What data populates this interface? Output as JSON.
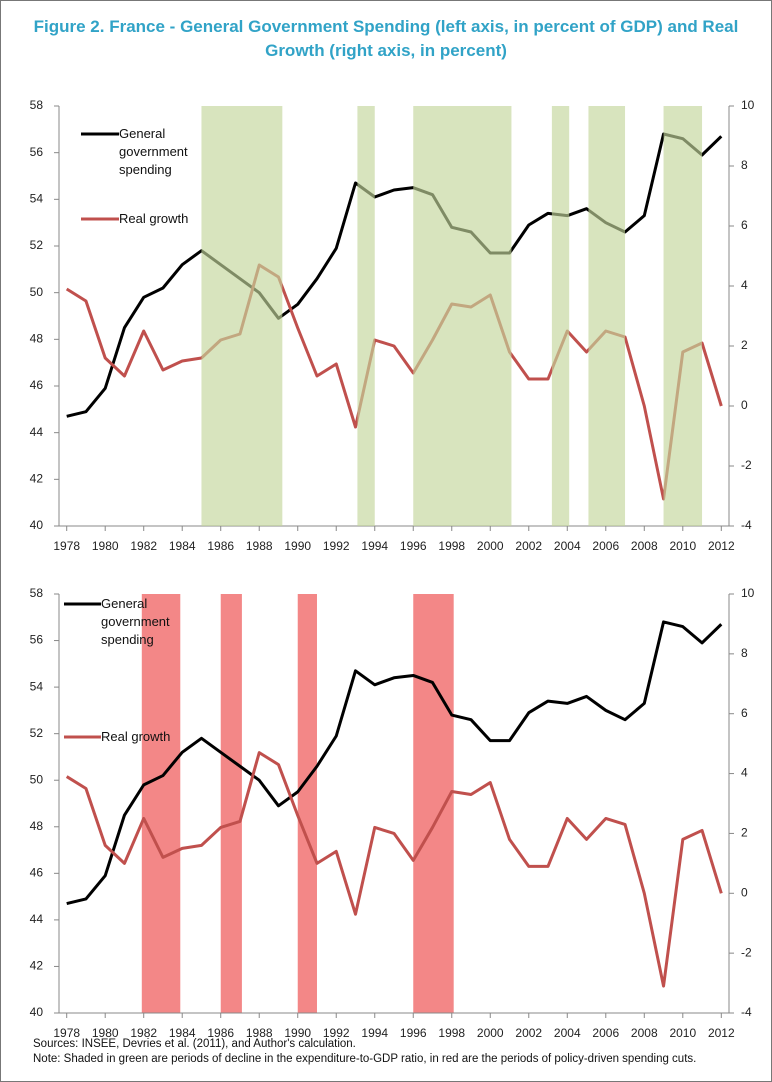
{
  "title": "Figure 2. France - General Government Spending (left axis, in percent of GDP) and Real Growth (right axis, in percent)",
  "notes": {
    "sources": "Sources: INSEE, Devries et al. (2011), and Author's calculation.",
    "note": "Note:  Shaded in green are periods of decline in the expenditure-to-GDP ratio, in red are the periods of policy-driven spending cuts."
  },
  "chart_data": [
    {
      "type": "line",
      "x": [
        1978,
        1979,
        1980,
        1981,
        1982,
        1983,
        1984,
        1985,
        1986,
        1987,
        1988,
        1989,
        1990,
        1991,
        1992,
        1993,
        1994,
        1995,
        1996,
        1997,
        1998,
        1999,
        2000,
        2001,
        2002,
        2003,
        2004,
        2005,
        2006,
        2007,
        2008,
        2009,
        2010,
        2011,
        2012
      ],
      "xlim": [
        1977.6,
        2012.4
      ],
      "xticks": [
        1978,
        1980,
        1982,
        1984,
        1986,
        1988,
        1990,
        1992,
        1994,
        1996,
        1998,
        2000,
        2002,
        2004,
        2006,
        2008,
        2010,
        2012
      ],
      "ylim": [
        40,
        58
      ],
      "yticks": [
        40,
        42,
        44,
        46,
        48,
        50,
        52,
        54,
        56,
        58
      ],
      "y2lim": [
        -4,
        10
      ],
      "y2ticks": [
        -4,
        -2,
        0,
        2,
        4,
        6,
        8,
        10
      ],
      "series": [
        {
          "name": "General government spending",
          "color": "#000000",
          "axis": "y",
          "values": [
            44.7,
            44.9,
            45.9,
            48.5,
            49.8,
            50.2,
            51.2,
            51.8,
            51.2,
            50.6,
            50.0,
            48.9,
            49.5,
            50.6,
            51.9,
            54.7,
            54.1,
            54.4,
            54.5,
            54.2,
            52.8,
            52.6,
            51.7,
            51.7,
            52.9,
            53.4,
            53.3,
            53.6,
            53.0,
            52.6,
            53.3,
            56.8,
            56.6,
            55.9,
            56.7
          ]
        },
        {
          "name": "Real growth",
          "color": "#c0504d",
          "axis": "y2",
          "values": [
            3.9,
            3.5,
            1.6,
            1.0,
            2.5,
            1.2,
            1.5,
            1.6,
            2.2,
            2.4,
            4.7,
            4.3,
            2.6,
            1.0,
            1.4,
            -0.7,
            2.2,
            2.0,
            1.1,
            2.2,
            3.4,
            3.3,
            3.7,
            1.8,
            0.9,
            0.9,
            2.5,
            1.8,
            2.5,
            2.3,
            0.0,
            -3.1,
            1.8,
            2.1,
            0.0
          ]
        }
      ],
      "shaded_periods": [
        [
          1985,
          1989.2
        ],
        [
          1993.1,
          1994
        ],
        [
          1996,
          2001.1
        ],
        [
          2003.2,
          2004.1
        ],
        [
          2005.1,
          2007
        ],
        [
          2009,
          2011
        ]
      ],
      "shading_color": "#c3d69b",
      "shading_layer": "above"
    },
    {
      "type": "line",
      "x": [
        1978,
        1979,
        1980,
        1981,
        1982,
        1983,
        1984,
        1985,
        1986,
        1987,
        1988,
        1989,
        1990,
        1991,
        1992,
        1993,
        1994,
        1995,
        1996,
        1997,
        1998,
        1999,
        2000,
        2001,
        2002,
        2003,
        2004,
        2005,
        2006,
        2007,
        2008,
        2009,
        2010,
        2011,
        2012
      ],
      "xlim": [
        1977.6,
        2012.4
      ],
      "xticks": [
        1978,
        1980,
        1982,
        1984,
        1986,
        1988,
        1990,
        1992,
        1994,
        1996,
        1998,
        2000,
        2002,
        2004,
        2006,
        2008,
        2010,
        2012
      ],
      "ylim": [
        40,
        58
      ],
      "yticks": [
        40,
        42,
        44,
        46,
        48,
        50,
        52,
        54,
        56,
        58
      ],
      "y2lim": [
        -4,
        10
      ],
      "y2ticks": [
        -4,
        -2,
        0,
        2,
        4,
        6,
        8,
        10
      ],
      "series": [
        {
          "name": "General government spending",
          "color": "#000000",
          "axis": "y",
          "values": [
            44.7,
            44.9,
            45.9,
            48.5,
            49.8,
            50.2,
            51.2,
            51.8,
            51.2,
            50.6,
            50.0,
            48.9,
            49.5,
            50.6,
            51.9,
            54.7,
            54.1,
            54.4,
            54.5,
            54.2,
            52.8,
            52.6,
            51.7,
            51.7,
            52.9,
            53.4,
            53.3,
            53.6,
            53.0,
            52.6,
            53.3,
            56.8,
            56.6,
            55.9,
            56.7
          ]
        },
        {
          "name": "Real growth",
          "color": "#c0504d",
          "axis": "y2",
          "values": [
            3.9,
            3.5,
            1.6,
            1.0,
            2.5,
            1.2,
            1.5,
            1.6,
            2.2,
            2.4,
            4.7,
            4.3,
            2.6,
            1.0,
            1.4,
            -0.7,
            2.2,
            2.0,
            1.1,
            2.2,
            3.4,
            3.3,
            3.7,
            1.8,
            0.9,
            0.9,
            2.5,
            1.8,
            2.5,
            2.3,
            0.0,
            -3.1,
            1.8,
            2.1,
            0.0
          ]
        }
      ],
      "shaded_periods": [
        [
          1981.9,
          1983.9
        ],
        [
          1986,
          1987.1
        ],
        [
          1990,
          1991
        ],
        [
          1996,
          1998.1
        ]
      ],
      "shading_color": "#f27a7a",
      "shading_layer": "below"
    }
  ]
}
